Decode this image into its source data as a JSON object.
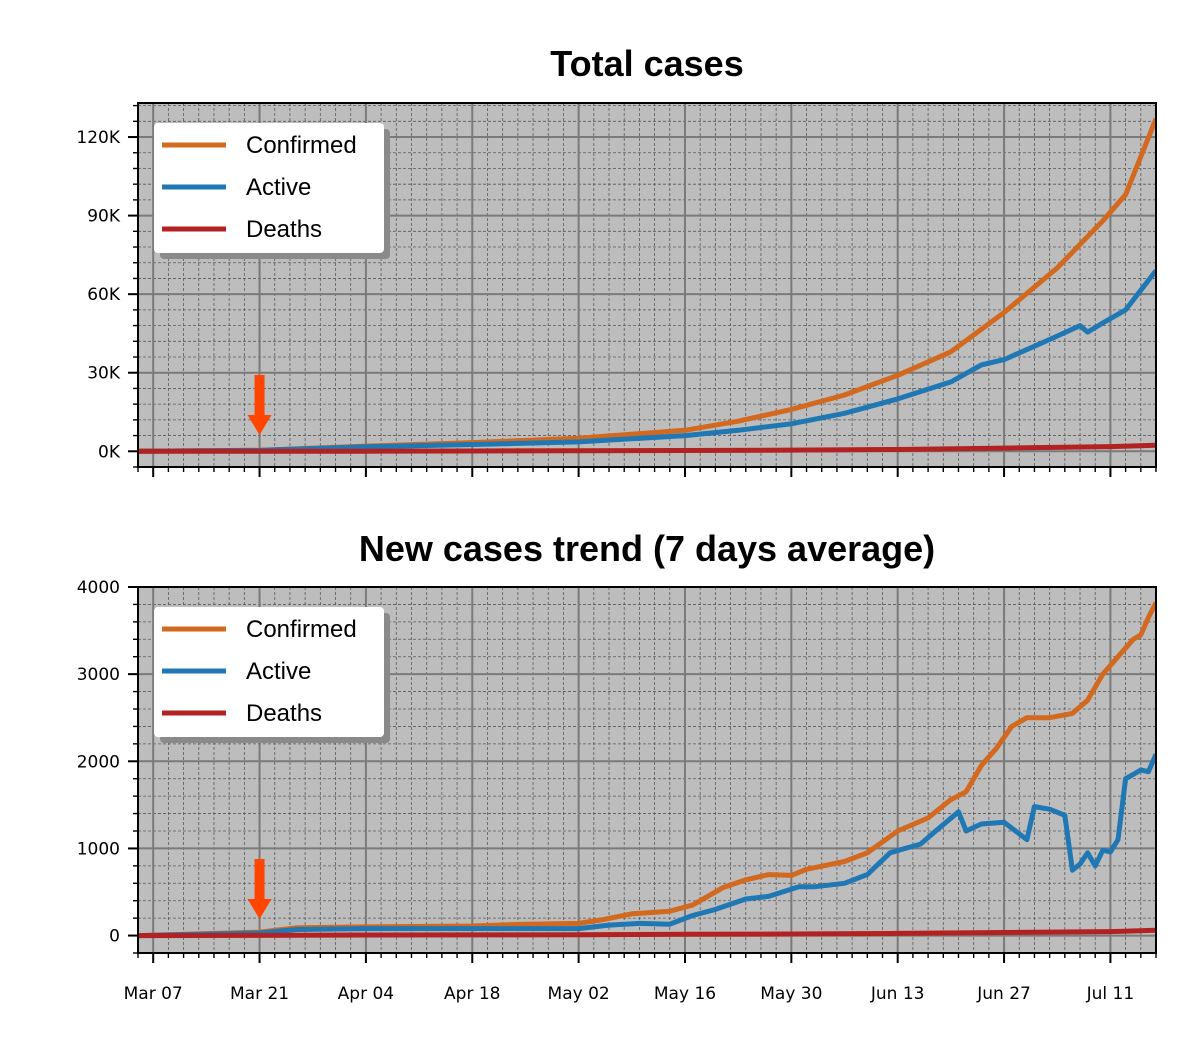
{
  "colors": {
    "background": "#bdbdbd",
    "confirmed": "#d2691e",
    "active": "#1f77b4",
    "deaths": "#b22222",
    "arrow": "#ff4500",
    "grid_major": "#7a7a7a",
    "grid_minor": "#5a5a5a"
  },
  "x_axis": {
    "start": "2020-03-05",
    "end": "2020-07-17",
    "tick_dates": [
      "2020-03-07",
      "2020-03-21",
      "2020-04-04",
      "2020-04-18",
      "2020-05-02",
      "2020-05-16",
      "2020-05-30",
      "2020-06-13",
      "2020-06-27",
      "2020-07-11"
    ],
    "tick_labels": [
      "Mar 07",
      "Mar 21",
      "Apr 04",
      "Apr 18",
      "May 02",
      "May 16",
      "May 30",
      "Jun 13",
      "Jun 27",
      "Jul 11"
    ]
  },
  "chart_data": [
    {
      "type": "line",
      "title": "Total cases",
      "ylim": [
        -6000,
        133000
      ],
      "yticks": [
        0,
        30000,
        60000,
        90000,
        120000
      ],
      "ytick_labels": [
        "0K",
        "30K",
        "60K",
        "90K",
        "120K"
      ],
      "grid": true,
      "legend_position": "top-left",
      "annotation": {
        "type": "arrow",
        "x": "2020-03-21"
      },
      "series": [
        {
          "name": "Confirmed",
          "color_key": "confirmed",
          "points": [
            [
              "2020-03-05",
              0
            ],
            [
              "2020-03-21",
              400
            ],
            [
              "2020-04-04",
              2000
            ],
            [
              "2020-04-18",
              3300
            ],
            [
              "2020-05-02",
              5000
            ],
            [
              "2020-05-16",
              8000
            ],
            [
              "2020-05-23",
              11500
            ],
            [
              "2020-05-30",
              16000
            ],
            [
              "2020-06-06",
              21500
            ],
            [
              "2020-06-13",
              29000
            ],
            [
              "2020-06-20",
              38000
            ],
            [
              "2020-06-27",
              53000
            ],
            [
              "2020-07-04",
              70000
            ],
            [
              "2020-07-10",
              88000
            ],
            [
              "2020-07-13",
              98000
            ],
            [
              "2020-07-17",
              127000
            ]
          ]
        },
        {
          "name": "Active",
          "color_key": "active",
          "points": [
            [
              "2020-03-05",
              0
            ],
            [
              "2020-03-21",
              350
            ],
            [
              "2020-04-04",
              1700
            ],
            [
              "2020-04-18",
              2600
            ],
            [
              "2020-05-02",
              3600
            ],
            [
              "2020-05-16",
              6000
            ],
            [
              "2020-05-23",
              8000
            ],
            [
              "2020-05-30",
              10500
            ],
            [
              "2020-06-06",
              14500
            ],
            [
              "2020-06-13",
              20000
            ],
            [
              "2020-06-20",
              26500
            ],
            [
              "2020-06-24",
              33000
            ],
            [
              "2020-06-27",
              35000
            ],
            [
              "2020-07-04",
              44000
            ],
            [
              "2020-07-07",
              48000
            ],
            [
              "2020-07-08",
              45500
            ],
            [
              "2020-07-10",
              49000
            ],
            [
              "2020-07-13",
              54000
            ],
            [
              "2020-07-17",
              69000
            ]
          ]
        },
        {
          "name": "Deaths",
          "color_key": "deaths",
          "points": [
            [
              "2020-03-05",
              0
            ],
            [
              "2020-03-21",
              5
            ],
            [
              "2020-04-04",
              50
            ],
            [
              "2020-04-18",
              120
            ],
            [
              "2020-05-02",
              200
            ],
            [
              "2020-05-16",
              300
            ],
            [
              "2020-05-30",
              450
            ],
            [
              "2020-06-13",
              700
            ],
            [
              "2020-06-27",
              1200
            ],
            [
              "2020-07-11",
              1800
            ],
            [
              "2020-07-17",
              2300
            ]
          ]
        }
      ]
    },
    {
      "type": "line",
      "title": "New cases trend (7 days average)",
      "ylim": [
        -200,
        4000
      ],
      "yticks": [
        0,
        1000,
        2000,
        3000,
        4000
      ],
      "ytick_labels": [
        "0",
        "1000",
        "2000",
        "3000",
        "4000"
      ],
      "grid": true,
      "legend_position": "top-left",
      "annotation": {
        "type": "arrow",
        "x": "2020-03-21"
      },
      "series": [
        {
          "name": "Confirmed",
          "color_key": "confirmed",
          "points": [
            [
              "2020-03-05",
              0
            ],
            [
              "2020-03-21",
              40
            ],
            [
              "2020-03-26",
              90
            ],
            [
              "2020-04-04",
              100
            ],
            [
              "2020-04-18",
              110
            ],
            [
              "2020-04-25",
              130
            ],
            [
              "2020-05-02",
              140
            ],
            [
              "2020-05-05",
              180
            ],
            [
              "2020-05-09",
              250
            ],
            [
              "2020-05-14",
              280
            ],
            [
              "2020-05-17",
              350
            ],
            [
              "2020-05-21",
              550
            ],
            [
              "2020-05-24",
              640
            ],
            [
              "2020-05-27",
              700
            ],
            [
              "2020-05-30",
              690
            ],
            [
              "2020-06-01",
              760
            ],
            [
              "2020-06-06",
              850
            ],
            [
              "2020-06-09",
              950
            ],
            [
              "2020-06-13",
              1200
            ],
            [
              "2020-06-17",
              1350
            ],
            [
              "2020-06-20",
              1560
            ],
            [
              "2020-06-22",
              1650
            ],
            [
              "2020-06-24",
              1950
            ],
            [
              "2020-06-26",
              2150
            ],
            [
              "2020-06-28",
              2400
            ],
            [
              "2020-06-30",
              2500
            ],
            [
              "2020-07-03",
              2500
            ],
            [
              "2020-07-06",
              2550
            ],
            [
              "2020-07-08",
              2700
            ],
            [
              "2020-07-10",
              3000
            ],
            [
              "2020-07-12",
              3200
            ],
            [
              "2020-07-14",
              3400
            ],
            [
              "2020-07-15",
              3450
            ],
            [
              "2020-07-16",
              3650
            ],
            [
              "2020-07-17",
              3820
            ]
          ]
        },
        {
          "name": "Active",
          "color_key": "active",
          "points": [
            [
              "2020-03-05",
              0
            ],
            [
              "2020-03-21",
              30
            ],
            [
              "2020-03-26",
              70
            ],
            [
              "2020-04-04",
              80
            ],
            [
              "2020-04-18",
              80
            ],
            [
              "2020-05-02",
              80
            ],
            [
              "2020-05-06",
              120
            ],
            [
              "2020-05-10",
              140
            ],
            [
              "2020-05-14",
              130
            ],
            [
              "2020-05-17",
              230
            ],
            [
              "2020-05-20",
              300
            ],
            [
              "2020-05-24",
              420
            ],
            [
              "2020-05-27",
              450
            ],
            [
              "2020-05-31",
              560
            ],
            [
              "2020-06-02",
              560
            ],
            [
              "2020-06-06",
              600
            ],
            [
              "2020-06-09",
              700
            ],
            [
              "2020-06-12",
              950
            ],
            [
              "2020-06-14",
              1000
            ],
            [
              "2020-06-16",
              1050
            ],
            [
              "2020-06-18",
              1200
            ],
            [
              "2020-06-21",
              1420
            ],
            [
              "2020-06-22",
              1200
            ],
            [
              "2020-06-24",
              1280
            ],
            [
              "2020-06-27",
              1300
            ],
            [
              "2020-06-30",
              1100
            ],
            [
              "2020-07-01",
              1480
            ],
            [
              "2020-07-03",
              1450
            ],
            [
              "2020-07-05",
              1380
            ],
            [
              "2020-07-06",
              750
            ],
            [
              "2020-07-07",
              820
            ],
            [
              "2020-07-08",
              950
            ],
            [
              "2020-07-09",
              800
            ],
            [
              "2020-07-10",
              980
            ],
            [
              "2020-07-11",
              960
            ],
            [
              "2020-07-12",
              1100
            ],
            [
              "2020-07-13",
              1800
            ],
            [
              "2020-07-14",
              1850
            ],
            [
              "2020-07-15",
              1900
            ],
            [
              "2020-07-16",
              1880
            ],
            [
              "2020-07-17",
              2080
            ]
          ]
        },
        {
          "name": "Deaths",
          "color_key": "deaths",
          "points": [
            [
              "2020-03-05",
              0
            ],
            [
              "2020-03-21",
              2
            ],
            [
              "2020-04-04",
              6
            ],
            [
              "2020-04-18",
              8
            ],
            [
              "2020-05-02",
              10
            ],
            [
              "2020-05-16",
              15
            ],
            [
              "2020-05-30",
              18
            ],
            [
              "2020-06-13",
              25
            ],
            [
              "2020-06-27",
              35
            ],
            [
              "2020-07-11",
              45
            ],
            [
              "2020-07-17",
              60
            ]
          ]
        }
      ]
    }
  ]
}
